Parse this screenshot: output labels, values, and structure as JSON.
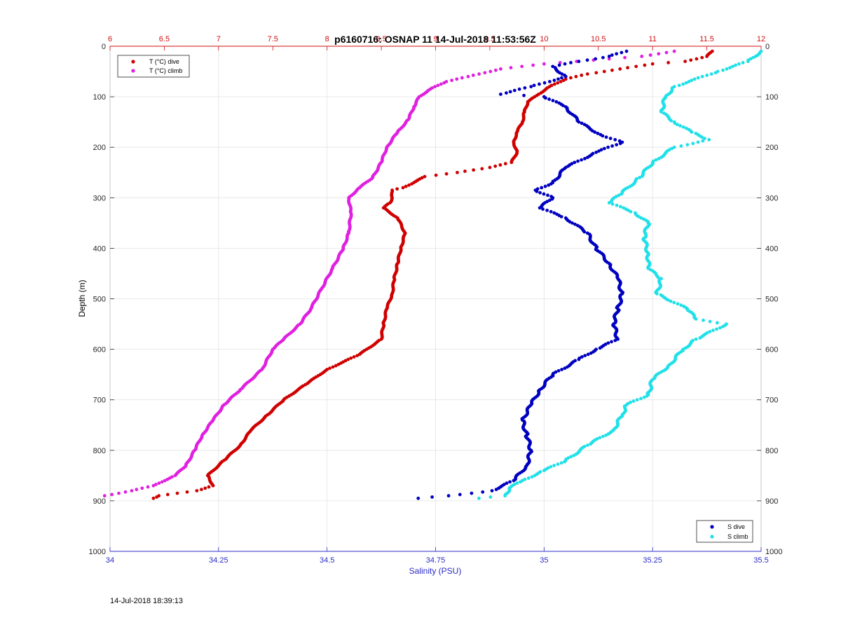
{
  "footer_timestamp": "14-Jul-2018 18:39:13",
  "chart_data": {
    "type": "scatter",
    "title": "p6160716: OSNAP 11 14-Jul-2018 11:53:56Z",
    "ylabel": "Depth (m)",
    "xlabel_bottom": "Salinity (PSU)",
    "xlabel_top": "",
    "ylim": [
      0,
      1000
    ],
    "y_reversed": true,
    "yticks": [
      0,
      100,
      200,
      300,
      400,
      500,
      600,
      700,
      800,
      900,
      1000
    ],
    "bottom_axis": {
      "range": [
        34,
        35.5
      ],
      "ticks": [
        34,
        34.25,
        34.5,
        34.75,
        35,
        35.25,
        35.5
      ],
      "tick_labels": [
        "34",
        "34.25",
        "34.5",
        "34.75",
        "35",
        "35.25",
        "35.5"
      ],
      "color": "#2b2bc8"
    },
    "top_axis": {
      "range": [
        6,
        12
      ],
      "ticks": [
        6,
        6.5,
        7,
        7.5,
        8,
        8.5,
        9,
        9.5,
        10,
        10.5,
        11,
        11.5,
        12
      ],
      "tick_labels": [
        "6",
        "6.5",
        "7",
        "7.5",
        "8",
        "8.5",
        "9",
        "9.5",
        "10",
        "10.5",
        "11",
        "11.5",
        "12"
      ],
      "color": "#d01010"
    },
    "grid": true,
    "legends": [
      {
        "placement": "top-left",
        "entries": [
          "T (°C) dive",
          "T (°C) climb"
        ]
      },
      {
        "placement": "bottom-right",
        "entries": [
          "S dive",
          "S climb"
        ]
      }
    ],
    "series": [
      {
        "name": "T (°C) dive",
        "axis": "top",
        "color": "#d00000",
        "points": [
          [
            11.55,
            10
          ],
          [
            11.5,
            20
          ],
          [
            11.3,
            30
          ],
          [
            11.0,
            35
          ],
          [
            10.7,
            45
          ],
          [
            10.4,
            55
          ],
          [
            10.2,
            65
          ],
          [
            10.05,
            80
          ],
          [
            9.95,
            95
          ],
          [
            9.85,
            110
          ],
          [
            9.82,
            130
          ],
          [
            9.8,
            150
          ],
          [
            9.75,
            170
          ],
          [
            9.72,
            190
          ],
          [
            9.75,
            210
          ],
          [
            9.7,
            230
          ],
          [
            9.5,
            240
          ],
          [
            9.2,
            250
          ],
          [
            8.9,
            258
          ],
          [
            8.8,
            270
          ],
          [
            8.7,
            280
          ],
          [
            8.6,
            285
          ],
          [
            8.6,
            300
          ],
          [
            8.58,
            310
          ],
          [
            8.52,
            320
          ],
          [
            8.65,
            340
          ],
          [
            8.72,
            370
          ],
          [
            8.68,
            400
          ],
          [
            8.65,
            430
          ],
          [
            8.62,
            460
          ],
          [
            8.6,
            490
          ],
          [
            8.55,
            520
          ],
          [
            8.52,
            550
          ],
          [
            8.5,
            580
          ],
          [
            8.3,
            610
          ],
          [
            8.0,
            640
          ],
          [
            7.8,
            670
          ],
          [
            7.6,
            700
          ],
          [
            7.45,
            730
          ],
          [
            7.3,
            760
          ],
          [
            7.2,
            790
          ],
          [
            7.05,
            820
          ],
          [
            6.9,
            850
          ],
          [
            6.95,
            870
          ],
          [
            6.8,
            880
          ],
          [
            6.45,
            890
          ],
          [
            6.4,
            895
          ]
        ]
      },
      {
        "name": "T (°C) climb",
        "axis": "top",
        "color": "#e020e0",
        "points": [
          [
            11.2,
            10
          ],
          [
            10.9,
            20
          ],
          [
            10.6,
            25
          ],
          [
            10.3,
            30
          ],
          [
            10.0,
            35
          ],
          [
            9.6,
            45
          ],
          [
            9.3,
            60
          ],
          [
            9.1,
            70
          ],
          [
            8.95,
            85
          ],
          [
            8.85,
            100
          ],
          [
            8.8,
            120
          ],
          [
            8.75,
            145
          ],
          [
            8.65,
            170
          ],
          [
            8.55,
            200
          ],
          [
            8.5,
            230
          ],
          [
            8.42,
            260
          ],
          [
            8.3,
            280
          ],
          [
            8.2,
            300
          ],
          [
            8.22,
            330
          ],
          [
            8.2,
            370
          ],
          [
            8.15,
            400
          ],
          [
            8.05,
            440
          ],
          [
            7.95,
            480
          ],
          [
            7.85,
            520
          ],
          [
            7.75,
            550
          ],
          [
            7.6,
            580
          ],
          [
            7.5,
            600
          ],
          [
            7.4,
            640
          ],
          [
            7.2,
            680
          ],
          [
            7.05,
            710
          ],
          [
            6.95,
            740
          ],
          [
            6.85,
            770
          ],
          [
            6.78,
            800
          ],
          [
            6.7,
            830
          ],
          [
            6.6,
            850
          ],
          [
            6.4,
            870
          ],
          [
            6.2,
            880
          ],
          [
            5.95,
            890
          ]
        ]
      },
      {
        "name": "S dive",
        "axis": "bottom",
        "color": "#0000c0",
        "points": [
          [
            35.19,
            10
          ],
          [
            35.15,
            20
          ],
          [
            35.08,
            30
          ],
          [
            35.02,
            40
          ],
          [
            35.05,
            60
          ],
          [
            34.97,
            80
          ],
          [
            34.9,
            95
          ],
          [
            35.0,
            100
          ],
          [
            35.05,
            120
          ],
          [
            35.08,
            150
          ],
          [
            35.13,
            175
          ],
          [
            35.18,
            190
          ],
          [
            35.12,
            210
          ],
          [
            35.05,
            240
          ],
          [
            35.02,
            270
          ],
          [
            34.98,
            285
          ],
          [
            35.02,
            300
          ],
          [
            34.99,
            320
          ],
          [
            35.05,
            340
          ],
          [
            35.1,
            370
          ],
          [
            35.12,
            400
          ],
          [
            35.15,
            430
          ],
          [
            35.17,
            460
          ],
          [
            35.18,
            490
          ],
          [
            35.17,
            520
          ],
          [
            35.16,
            550
          ],
          [
            35.17,
            580
          ],
          [
            35.12,
            600
          ],
          [
            35.08,
            620
          ],
          [
            35.02,
            650
          ],
          [
            34.99,
            680
          ],
          [
            34.97,
            710
          ],
          [
            34.95,
            740
          ],
          [
            34.96,
            770
          ],
          [
            34.97,
            800
          ],
          [
            34.96,
            830
          ],
          [
            34.93,
            860
          ],
          [
            34.88,
            880
          ],
          [
            34.78,
            890
          ],
          [
            34.71,
            895
          ]
        ]
      },
      {
        "name": "S climb",
        "axis": "bottom",
        "color": "#20e0e8",
        "points": [
          [
            35.5,
            10
          ],
          [
            35.47,
            30
          ],
          [
            35.4,
            50
          ],
          [
            35.3,
            80
          ],
          [
            35.28,
            100
          ],
          [
            35.27,
            130
          ],
          [
            35.3,
            150
          ],
          [
            35.34,
            170
          ],
          [
            35.38,
            185
          ],
          [
            35.3,
            200
          ],
          [
            35.25,
            230
          ],
          [
            35.22,
            260
          ],
          [
            35.18,
            290
          ],
          [
            35.15,
            310
          ],
          [
            35.21,
            330
          ],
          [
            35.24,
            350
          ],
          [
            35.23,
            380
          ],
          [
            35.24,
            410
          ],
          [
            35.24,
            440
          ],
          [
            35.27,
            460
          ],
          [
            35.26,
            490
          ],
          [
            35.33,
            520
          ],
          [
            35.35,
            540
          ],
          [
            35.42,
            550
          ],
          [
            35.35,
            580
          ],
          [
            35.32,
            600
          ],
          [
            35.29,
            630
          ],
          [
            35.25,
            660
          ],
          [
            35.24,
            690
          ],
          [
            35.19,
            710
          ],
          [
            35.18,
            730
          ],
          [
            35.16,
            760
          ],
          [
            35.1,
            790
          ],
          [
            35.05,
            820
          ],
          [
            35.0,
            840
          ],
          [
            34.95,
            860
          ],
          [
            34.92,
            875
          ],
          [
            34.91,
            890
          ],
          [
            34.85,
            895
          ]
        ]
      }
    ]
  }
}
